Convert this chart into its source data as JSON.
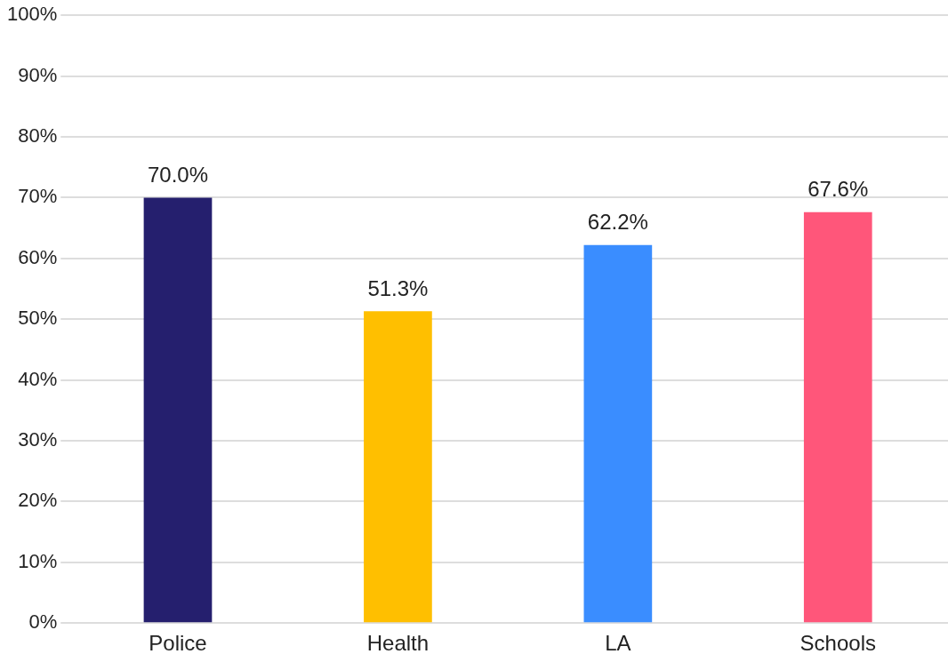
{
  "chart_data": {
    "type": "bar",
    "categories": [
      "Police",
      "Health",
      "LA",
      "Schools"
    ],
    "values": [
      70.0,
      51.3,
      62.2,
      67.6
    ],
    "colors": [
      "#251f6e",
      "#ffbf00",
      "#3a8dff",
      "#ff567a"
    ],
    "value_labels": [
      "70.0%",
      "51.3%",
      "62.2%",
      "67.6%"
    ],
    "ylim": [
      0,
      100
    ],
    "yticks": [
      {
        "value": 0,
        "label": "0%"
      },
      {
        "value": 10,
        "label": "10%"
      },
      {
        "value": 20,
        "label": "20%"
      },
      {
        "value": 30,
        "label": "30%"
      },
      {
        "value": 40,
        "label": "40%"
      },
      {
        "value": 50,
        "label": "50%"
      },
      {
        "value": 60,
        "label": "60%"
      },
      {
        "value": 70,
        "label": "70%"
      },
      {
        "value": 80,
        "label": "80%"
      },
      {
        "value": 90,
        "label": "90%"
      },
      {
        "value": 100,
        "label": "100%"
      }
    ],
    "grid": "y"
  }
}
